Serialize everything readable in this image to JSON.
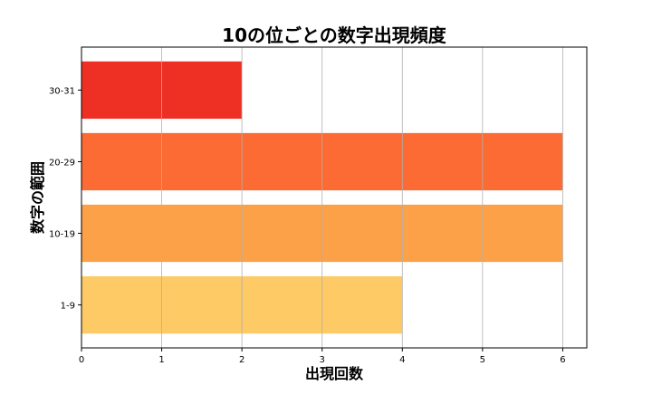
{
  "chart_data": {
    "type": "bar",
    "orientation": "horizontal",
    "title": "10の位ごとの数字出現頻度",
    "xlabel": "出現回数",
    "ylabel": "数字の範囲",
    "categories": [
      "1-9",
      "10-19",
      "20-29",
      "30-31"
    ],
    "values": [
      4,
      6,
      6,
      2
    ],
    "colors": [
      "#FDCA65",
      "#FCA147",
      "#FC6B33",
      "#EE3024"
    ],
    "xlim": [
      0,
      6.3
    ],
    "xticks": [
      0,
      1,
      2,
      3,
      4,
      5,
      6
    ],
    "grid": "x-axis vertical lines",
    "legend": "none"
  }
}
